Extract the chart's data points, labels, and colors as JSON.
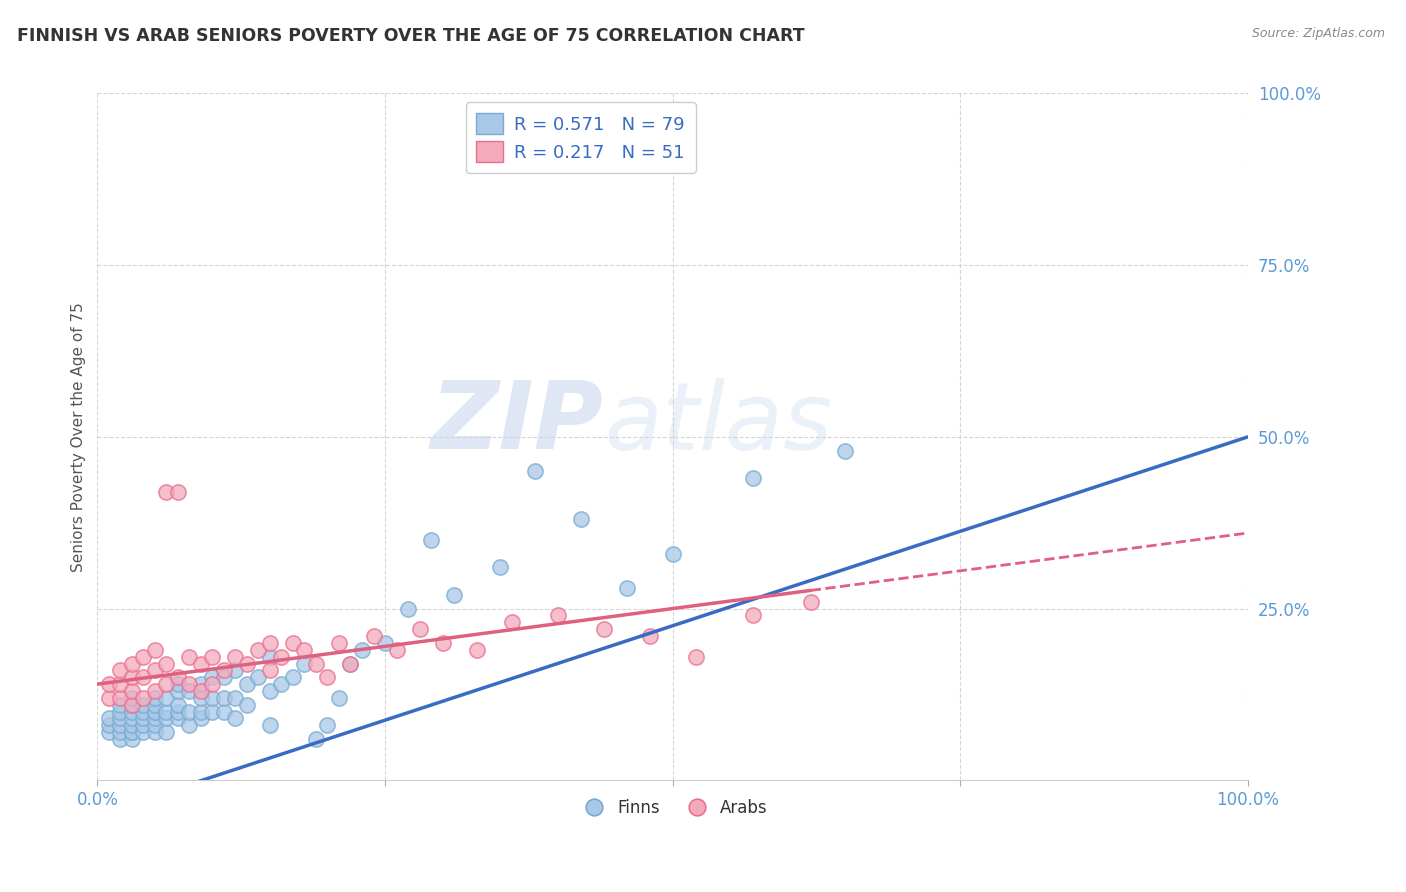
{
  "title": "FINNISH VS ARAB SENIORS POVERTY OVER THE AGE OF 75 CORRELATION CHART",
  "source_text": "Source: ZipAtlas.com",
  "ylabel": "Seniors Poverty Over the Age of 75",
  "xlim": [
    0.0,
    1.0
  ],
  "ylim": [
    0.0,
    1.0
  ],
  "ytick_labels": [
    "25.0%",
    "50.0%",
    "75.0%",
    "100.0%"
  ],
  "ytick_positions": [
    0.25,
    0.5,
    0.75,
    1.0
  ],
  "finn_color": "#A8C8E8",
  "arab_color": "#F4AABB",
  "finn_edge_color": "#7AAAD0",
  "arab_edge_color": "#E87090",
  "finn_line_color": "#3A6BC4",
  "arab_line_color": "#E06080",
  "watermark_zip": "ZIP",
  "watermark_atlas": "atlas",
  "legend_r_finn": "R = 0.571",
  "legend_n_finn": "N = 79",
  "legend_r_arab": "R = 0.217",
  "legend_n_arab": "N = 51",
  "finn_intercept": -0.05,
  "finn_slope": 0.55,
  "arab_intercept": 0.14,
  "arab_slope": 0.22,
  "background_color": "#FFFFFF",
  "grid_color": "#CCCCCC",
  "title_color": "#333333",
  "axis_label_color": "#5B9BD5",
  "legend_text_color": "#3A6BC4",
  "finn_scatter": {
    "x": [
      0.01,
      0.01,
      0.01,
      0.02,
      0.02,
      0.02,
      0.02,
      0.02,
      0.02,
      0.03,
      0.03,
      0.03,
      0.03,
      0.03,
      0.03,
      0.03,
      0.03,
      0.04,
      0.04,
      0.04,
      0.04,
      0.04,
      0.05,
      0.05,
      0.05,
      0.05,
      0.05,
      0.05,
      0.05,
      0.06,
      0.06,
      0.06,
      0.06,
      0.07,
      0.07,
      0.07,
      0.07,
      0.07,
      0.08,
      0.08,
      0.08,
      0.09,
      0.09,
      0.09,
      0.09,
      0.1,
      0.1,
      0.1,
      0.11,
      0.11,
      0.11,
      0.12,
      0.12,
      0.12,
      0.13,
      0.13,
      0.14,
      0.15,
      0.15,
      0.15,
      0.16,
      0.17,
      0.18,
      0.19,
      0.2,
      0.21,
      0.22,
      0.23,
      0.25,
      0.27,
      0.29,
      0.31,
      0.35,
      0.38,
      0.42,
      0.46,
      0.5,
      0.57,
      0.65
    ],
    "y": [
      0.07,
      0.08,
      0.09,
      0.06,
      0.07,
      0.08,
      0.09,
      0.1,
      0.11,
      0.06,
      0.07,
      0.07,
      0.08,
      0.09,
      0.1,
      0.11,
      0.12,
      0.07,
      0.08,
      0.09,
      0.1,
      0.11,
      0.07,
      0.08,
      0.09,
      0.1,
      0.1,
      0.11,
      0.12,
      0.07,
      0.09,
      0.1,
      0.12,
      0.09,
      0.1,
      0.11,
      0.13,
      0.14,
      0.08,
      0.1,
      0.13,
      0.09,
      0.1,
      0.12,
      0.14,
      0.1,
      0.12,
      0.15,
      0.1,
      0.12,
      0.15,
      0.09,
      0.12,
      0.16,
      0.11,
      0.14,
      0.15,
      0.08,
      0.13,
      0.18,
      0.14,
      0.15,
      0.17,
      0.06,
      0.08,
      0.12,
      0.17,
      0.19,
      0.2,
      0.25,
      0.35,
      0.27,
      0.31,
      0.45,
      0.38,
      0.28,
      0.33,
      0.44,
      0.48
    ]
  },
  "arab_scatter": {
    "x": [
      0.01,
      0.01,
      0.02,
      0.02,
      0.02,
      0.03,
      0.03,
      0.03,
      0.03,
      0.04,
      0.04,
      0.04,
      0.05,
      0.05,
      0.05,
      0.06,
      0.06,
      0.06,
      0.07,
      0.07,
      0.08,
      0.08,
      0.09,
      0.09,
      0.1,
      0.1,
      0.11,
      0.12,
      0.13,
      0.14,
      0.15,
      0.15,
      0.16,
      0.17,
      0.18,
      0.19,
      0.2,
      0.21,
      0.22,
      0.24,
      0.26,
      0.28,
      0.3,
      0.33,
      0.36,
      0.4,
      0.44,
      0.48,
      0.52,
      0.57,
      0.62
    ],
    "y": [
      0.12,
      0.14,
      0.12,
      0.14,
      0.16,
      0.11,
      0.13,
      0.15,
      0.17,
      0.12,
      0.15,
      0.18,
      0.13,
      0.16,
      0.19,
      0.14,
      0.17,
      0.42,
      0.15,
      0.42,
      0.14,
      0.18,
      0.13,
      0.17,
      0.14,
      0.18,
      0.16,
      0.18,
      0.17,
      0.19,
      0.16,
      0.2,
      0.18,
      0.2,
      0.19,
      0.17,
      0.15,
      0.2,
      0.17,
      0.21,
      0.19,
      0.22,
      0.2,
      0.19,
      0.23,
      0.24,
      0.22,
      0.21,
      0.18,
      0.24,
      0.26
    ]
  }
}
